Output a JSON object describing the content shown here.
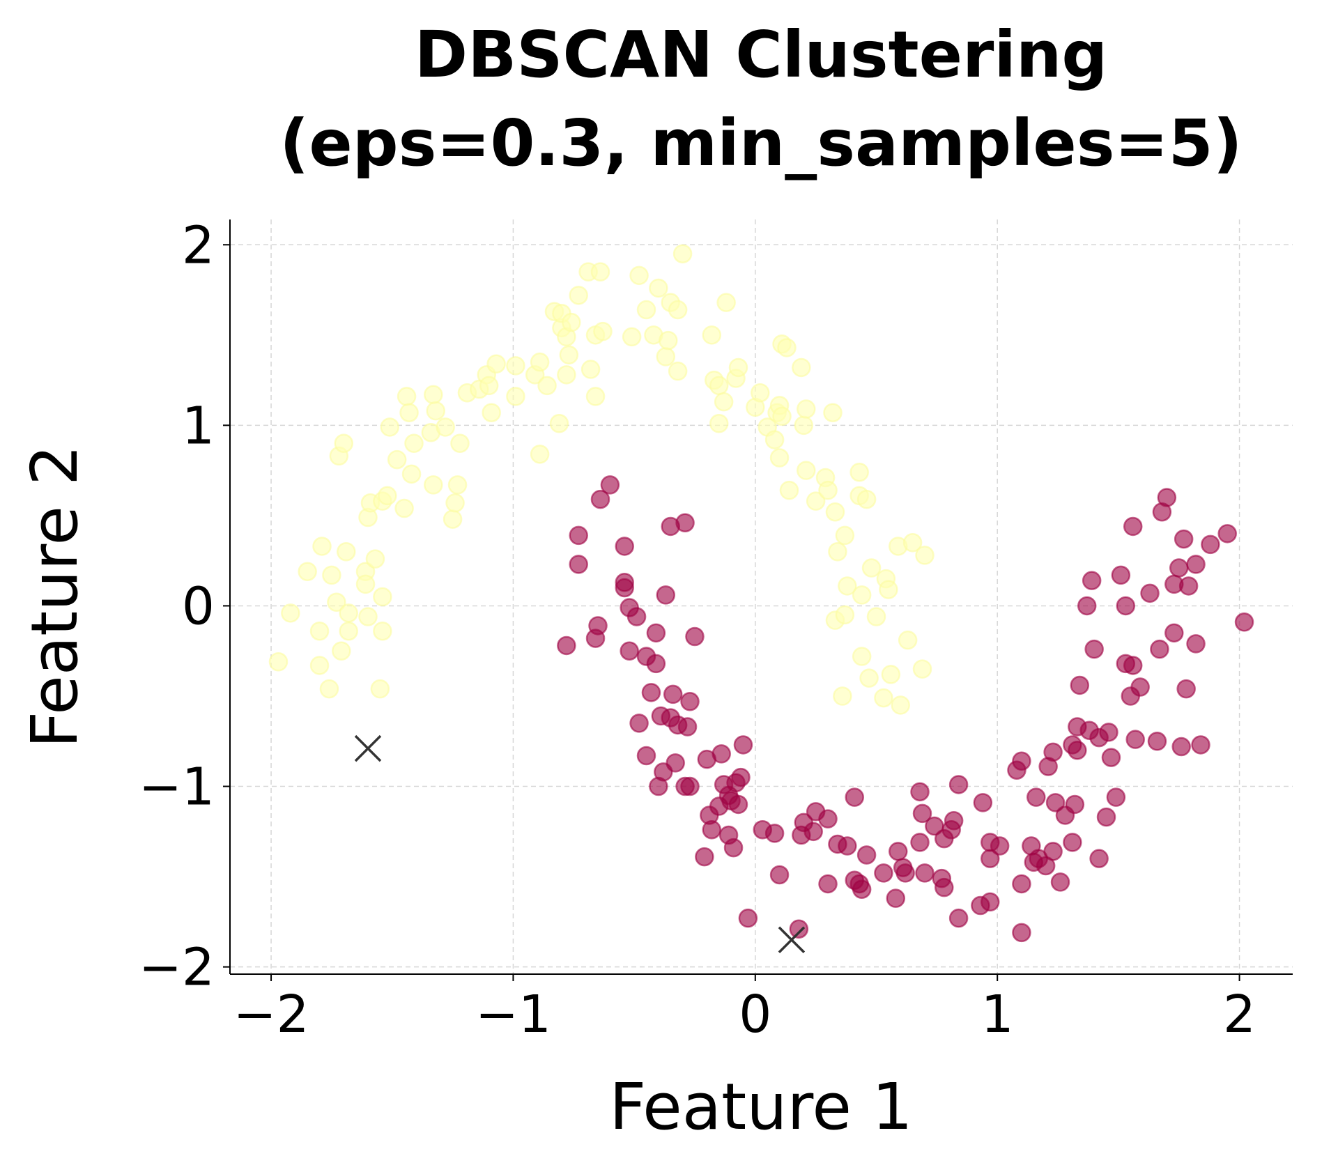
{
  "chart_data": {
    "type": "scatter",
    "title_line1": "DBSCAN Clustering",
    "title_line2": "(eps=0.3, min_samples=5)",
    "xlabel": "Feature 1",
    "ylabel": "Feature 2",
    "xlim": [
      -2.17,
      2.22
    ],
    "ylim": [
      -2.04,
      2.14
    ],
    "xticks": [
      -2,
      -1,
      0,
      1,
      2
    ],
    "yticks": [
      -2,
      -1,
      0,
      1,
      2
    ],
    "xtick_labels": [
      "−2",
      "−1",
      "0",
      "1",
      "2"
    ],
    "ytick_labels": [
      "−2",
      "−1",
      "0",
      "1",
      "2"
    ],
    "grid": true,
    "colors": {
      "cluster_0": "#ffffb2",
      "cluster_1": "#9e0142",
      "noise": "#333333"
    },
    "series": [
      {
        "cluster": 0,
        "marker": "circle",
        "points": [
          [
            -1.97,
            -0.31
          ],
          [
            -1.92,
            -0.04
          ],
          [
            -1.85,
            0.19
          ],
          [
            -1.79,
            0.33
          ],
          [
            -1.8,
            -0.14
          ],
          [
            -1.8,
            -0.33
          ],
          [
            -1.76,
            -0.46
          ],
          [
            -1.75,
            0.17
          ],
          [
            -1.73,
            0.02
          ],
          [
            -1.71,
            -0.25
          ],
          [
            -1.69,
            0.3
          ],
          [
            -1.68,
            -0.14
          ],
          [
            -1.68,
            -0.04
          ],
          [
            -1.72,
            0.83
          ],
          [
            -1.7,
            0.9
          ],
          [
            -1.61,
            0.19
          ],
          [
            -1.61,
            0.12
          ],
          [
            -1.6,
            0.49
          ],
          [
            -1.59,
            0.57
          ],
          [
            -1.57,
            0.26
          ],
          [
            -1.54,
            0.58
          ],
          [
            -1.54,
            0.05
          ],
          [
            -1.55,
            -0.46
          ],
          [
            -1.54,
            -0.14
          ],
          [
            -1.6,
            -0.06
          ],
          [
            -1.52,
            0.61
          ],
          [
            -1.51,
            0.99
          ],
          [
            -1.48,
            0.81
          ],
          [
            -1.45,
            0.54
          ],
          [
            -1.44,
            1.16
          ],
          [
            -1.43,
            1.07
          ],
          [
            -1.42,
            0.73
          ],
          [
            -1.41,
            0.9
          ],
          [
            -1.34,
            0.96
          ],
          [
            -1.33,
            0.67
          ],
          [
            -1.33,
            1.17
          ],
          [
            -1.32,
            1.08
          ],
          [
            -1.28,
            0.99
          ],
          [
            -1.25,
            0.48
          ],
          [
            -1.24,
            0.57
          ],
          [
            -1.23,
            0.67
          ],
          [
            -1.22,
            0.9
          ],
          [
            -1.19,
            1.18
          ],
          [
            -1.14,
            1.2
          ],
          [
            -1.11,
            1.28
          ],
          [
            -1.1,
            1.22
          ],
          [
            -1.09,
            1.07
          ],
          [
            -1.07,
            1.34
          ],
          [
            -0.99,
            1.33
          ],
          [
            -0.99,
            1.16
          ],
          [
            -0.91,
            1.28
          ],
          [
            -0.89,
            0.84
          ],
          [
            -0.89,
            1.35
          ],
          [
            -0.86,
            1.22
          ],
          [
            -0.81,
            1.01
          ],
          [
            -0.83,
            1.63
          ],
          [
            -0.8,
            1.54
          ],
          [
            -0.8,
            1.62
          ],
          [
            -0.78,
            1.49
          ],
          [
            -0.78,
            1.28
          ],
          [
            -0.77,
            1.39
          ],
          [
            -0.76,
            1.57
          ],
          [
            -0.73,
            1.72
          ],
          [
            -0.69,
            1.85
          ],
          [
            -0.68,
            1.31
          ],
          [
            -0.66,
            1.16
          ],
          [
            -0.66,
            1.5
          ],
          [
            -0.64,
            1.85
          ],
          [
            -0.63,
            1.52
          ],
          [
            -0.51,
            1.49
          ],
          [
            -0.48,
            1.83
          ],
          [
            -0.45,
            1.64
          ],
          [
            -0.42,
            1.5
          ],
          [
            -0.4,
            1.76
          ],
          [
            -0.37,
            1.38
          ],
          [
            -0.36,
            1.47
          ],
          [
            -0.35,
            1.68
          ],
          [
            -0.32,
            1.64
          ],
          [
            -0.32,
            1.3
          ],
          [
            -0.3,
            1.95
          ],
          [
            -0.18,
            1.5
          ],
          [
            -0.17,
            1.25
          ],
          [
            -0.15,
            1.22
          ],
          [
            -0.12,
            1.68
          ],
          [
            -0.13,
            1.13
          ],
          [
            -0.15,
            1.01
          ],
          [
            -0.08,
            1.26
          ],
          [
            -0.07,
            1.32
          ],
          [
            0.0,
            1.1
          ],
          [
            0.02,
            1.18
          ],
          [
            0.05,
            0.99
          ],
          [
            0.08,
            0.92
          ],
          [
            0.09,
            1.07
          ],
          [
            0.1,
            0.82
          ],
          [
            0.1,
            1.11
          ],
          [
            0.11,
            1.05
          ],
          [
            0.11,
            1.45
          ],
          [
            0.13,
            1.43
          ],
          [
            0.14,
            0.64
          ],
          [
            0.19,
            1.32
          ],
          [
            0.2,
            1.0
          ],
          [
            0.21,
            0.75
          ],
          [
            0.21,
            1.09
          ],
          [
            0.25,
            0.58
          ],
          [
            0.29,
            0.71
          ],
          [
            0.3,
            0.64
          ],
          [
            0.32,
            1.07
          ],
          [
            0.33,
            0.52
          ],
          [
            0.34,
            0.3
          ],
          [
            0.33,
            -0.08
          ],
          [
            0.36,
            -0.5
          ],
          [
            0.37,
            -0.05
          ],
          [
            0.37,
            0.39
          ],
          [
            0.38,
            0.11
          ],
          [
            0.43,
            0.74
          ],
          [
            0.43,
            0.61
          ],
          [
            0.44,
            -0.28
          ],
          [
            0.44,
            0.06
          ],
          [
            0.46,
            0.59
          ],
          [
            0.47,
            -0.4
          ],
          [
            0.48,
            0.21
          ],
          [
            0.5,
            -0.06
          ],
          [
            0.53,
            -0.51
          ],
          [
            0.54,
            0.15
          ],
          [
            0.55,
            0.09
          ],
          [
            0.56,
            -0.38
          ],
          [
            0.59,
            0.33
          ],
          [
            0.6,
            -0.55
          ],
          [
            0.65,
            0.35
          ],
          [
            0.63,
            -0.19
          ],
          [
            0.69,
            -0.35
          ],
          [
            0.7,
            0.28
          ]
        ]
      },
      {
        "cluster": 1,
        "marker": "circle",
        "points": [
          [
            -0.78,
            -0.22
          ],
          [
            -0.73,
            0.39
          ],
          [
            -0.73,
            0.23
          ],
          [
            -0.66,
            -0.18
          ],
          [
            -0.65,
            -0.11
          ],
          [
            -0.64,
            0.59
          ],
          [
            -0.6,
            0.67
          ],
          [
            -0.54,
            0.33
          ],
          [
            -0.54,
            0.13
          ],
          [
            -0.54,
            0.1
          ],
          [
            -0.52,
            -0.25
          ],
          [
            -0.52,
            -0.01
          ],
          [
            -0.49,
            -0.06
          ],
          [
            -0.48,
            -0.65
          ],
          [
            -0.45,
            -0.83
          ],
          [
            -0.45,
            -0.28
          ],
          [
            -0.43,
            -0.48
          ],
          [
            -0.41,
            -0.32
          ],
          [
            -0.41,
            -0.15
          ],
          [
            -0.4,
            -1.0
          ],
          [
            -0.39,
            -0.61
          ],
          [
            -0.38,
            -0.92
          ],
          [
            -0.37,
            0.06
          ],
          [
            -0.35,
            -0.62
          ],
          [
            -0.35,
            0.44
          ],
          [
            -0.34,
            -0.49
          ],
          [
            -0.33,
            -0.87
          ],
          [
            -0.32,
            -0.66
          ],
          [
            -0.29,
            -1.0
          ],
          [
            -0.29,
            0.46
          ],
          [
            -0.28,
            -0.67
          ],
          [
            -0.27,
            -1.0
          ],
          [
            -0.27,
            -0.53
          ],
          [
            -0.25,
            -0.17
          ],
          [
            -0.21,
            -1.39
          ],
          [
            -0.2,
            -0.85
          ],
          [
            -0.19,
            -1.16
          ],
          [
            -0.18,
            -1.24
          ],
          [
            -0.15,
            -1.11
          ],
          [
            -0.14,
            -0.82
          ],
          [
            -0.13,
            -0.99
          ],
          [
            -0.11,
            -1.05
          ],
          [
            -0.11,
            -1.27
          ],
          [
            -0.09,
            -1.34
          ],
          [
            -0.1,
            -1.08
          ],
          [
            -0.08,
            -0.98
          ],
          [
            -0.07,
            -1.1
          ],
          [
            -0.06,
            -0.95
          ],
          [
            -0.05,
            -0.77
          ],
          [
            -0.03,
            -1.73
          ],
          [
            0.03,
            -1.24
          ],
          [
            0.08,
            -1.26
          ],
          [
            0.1,
            -1.49
          ],
          [
            0.18,
            -1.79
          ],
          [
            0.19,
            -1.27
          ],
          [
            0.2,
            -1.2
          ],
          [
            0.24,
            -1.25
          ],
          [
            0.25,
            -1.14
          ],
          [
            0.3,
            -1.18
          ],
          [
            0.3,
            -1.54
          ],
          [
            0.34,
            -1.32
          ],
          [
            0.38,
            -1.33
          ],
          [
            0.41,
            -1.06
          ],
          [
            0.41,
            -1.52
          ],
          [
            0.43,
            -1.54
          ],
          [
            0.44,
            -1.57
          ],
          [
            0.46,
            -1.38
          ],
          [
            0.53,
            -1.48
          ],
          [
            0.58,
            -1.62
          ],
          [
            0.59,
            -1.36
          ],
          [
            0.61,
            -1.45
          ],
          [
            0.62,
            -1.48
          ],
          [
            0.68,
            -1.03
          ],
          [
            0.68,
            -1.31
          ],
          [
            0.69,
            -1.15
          ],
          [
            0.7,
            -1.48
          ],
          [
            0.74,
            -1.22
          ],
          [
            0.77,
            -1.51
          ],
          [
            0.78,
            -1.56
          ],
          [
            0.78,
            -1.29
          ],
          [
            0.81,
            -1.24
          ],
          [
            0.82,
            -1.19
          ],
          [
            0.84,
            -1.73
          ],
          [
            0.84,
            -0.99
          ],
          [
            0.94,
            -1.09
          ],
          [
            0.93,
            -1.66
          ],
          [
            0.97,
            -1.31
          ],
          [
            0.97,
            -1.64
          ],
          [
            0.97,
            -1.4
          ],
          [
            1.01,
            -1.33
          ],
          [
            1.08,
            -0.91
          ],
          [
            1.1,
            -0.86
          ],
          [
            1.1,
            -1.54
          ],
          [
            1.1,
            -1.81
          ],
          [
            1.14,
            -1.33
          ],
          [
            1.16,
            -1.06
          ],
          [
            1.15,
            -1.42
          ],
          [
            1.17,
            -1.4
          ],
          [
            1.2,
            -1.44
          ],
          [
            1.21,
            -0.89
          ],
          [
            1.23,
            -0.81
          ],
          [
            1.23,
            -1.36
          ],
          [
            1.24,
            -1.09
          ],
          [
            1.26,
            -1.53
          ],
          [
            1.28,
            -1.16
          ],
          [
            1.31,
            -0.77
          ],
          [
            1.31,
            -1.31
          ],
          [
            1.32,
            -1.1
          ],
          [
            1.33,
            -0.8
          ],
          [
            1.33,
            -0.67
          ],
          [
            1.34,
            -0.44
          ],
          [
            1.37,
            0.0
          ],
          [
            1.38,
            -0.69
          ],
          [
            1.39,
            0.14
          ],
          [
            1.4,
            -0.24
          ],
          [
            1.42,
            -0.73
          ],
          [
            1.42,
            -1.4
          ],
          [
            1.45,
            -1.17
          ],
          [
            1.46,
            -0.7
          ],
          [
            1.47,
            -0.84
          ],
          [
            1.49,
            -1.06
          ],
          [
            1.51,
            0.17
          ],
          [
            1.53,
            0.0
          ],
          [
            1.53,
            -0.32
          ],
          [
            1.55,
            -0.5
          ],
          [
            1.56,
            -0.33
          ],
          [
            1.56,
            0.44
          ],
          [
            1.57,
            -0.74
          ],
          [
            1.59,
            -0.45
          ],
          [
            1.63,
            0.07
          ],
          [
            1.66,
            -0.75
          ],
          [
            1.67,
            -0.24
          ],
          [
            1.68,
            0.52
          ],
          [
            1.7,
            0.6
          ],
          [
            1.73,
            0.12
          ],
          [
            1.73,
            -0.15
          ],
          [
            1.75,
            0.21
          ],
          [
            1.76,
            -0.78
          ],
          [
            1.77,
            0.37
          ],
          [
            1.78,
            -0.46
          ],
          [
            1.79,
            0.11
          ],
          [
            1.82,
            -0.21
          ],
          [
            1.82,
            0.23
          ],
          [
            1.84,
            -0.77
          ],
          [
            1.88,
            0.34
          ],
          [
            1.95,
            0.4
          ],
          [
            2.02,
            -0.09
          ]
        ]
      },
      {
        "cluster": -1,
        "marker": "x",
        "points": [
          [
            -1.6,
            -0.79
          ],
          [
            0.15,
            -1.85
          ]
        ]
      }
    ]
  }
}
